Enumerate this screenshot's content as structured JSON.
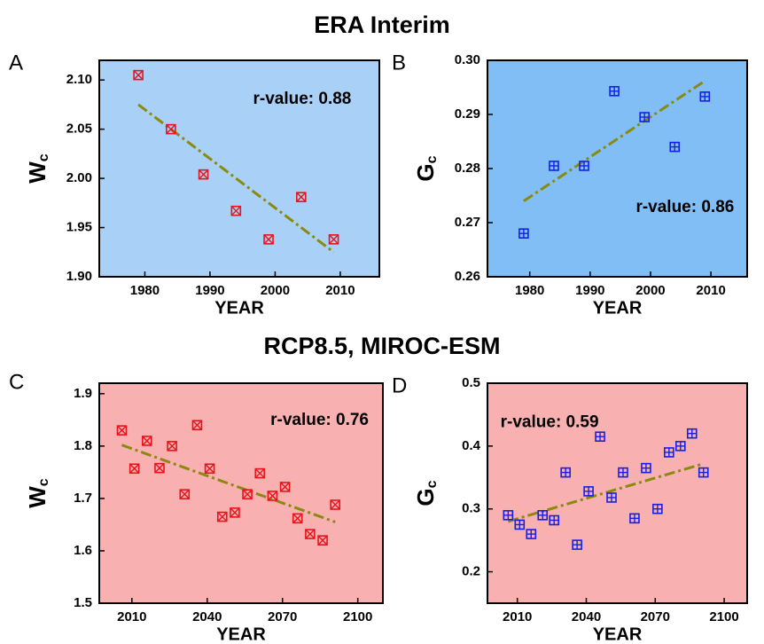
{
  "headings": [
    "ERA Interim",
    "RCP8.5, MIROC-ESM"
  ],
  "chart_data": [
    {
      "type": "scatter",
      "panel": "A",
      "xlabel": "YEAR",
      "ylabel": "W",
      "ylabel_subscript": "c",
      "annotation": "r-value: 0.88",
      "background": "#a9d0f7",
      "x": [
        1979,
        1984,
        1989,
        1994,
        1999,
        2004,
        2009
      ],
      "series": [
        {
          "color": "#e8141c",
          "marker": "cross",
          "values": [
            2.105,
            2.05,
            2.004,
            1.967,
            1.938,
            1.981,
            1.938
          ]
        }
      ],
      "trend": {
        "x": [
          1979,
          2009
        ],
        "values": [
          2.075,
          1.925
        ],
        "color": "#8a8a10"
      },
      "xlim": [
        1973,
        2016
      ],
      "xticks": [
        1980,
        1990,
        2000,
        2010
      ],
      "ylim": [
        1.9,
        2.12
      ],
      "yticks": [
        {
          "value": 1.9,
          "label": "1.90"
        },
        1.95,
        {
          "value": 2.0,
          "label": "2.00"
        },
        2.05,
        {
          "value": 2.1,
          "label": "2.10"
        }
      ]
    },
    {
      "type": "scatter",
      "panel": "B",
      "xlabel": "YEAR",
      "ylabel": "G",
      "ylabel_subscript": "c",
      "annotation": "r-value: 0.86",
      "background": "#80bef5",
      "x": [
        1979,
        1984,
        1989,
        1994,
        1999,
        2004,
        2009
      ],
      "series": [
        {
          "color": "#1420e8",
          "marker": "plus",
          "values": [
            0.268,
            0.2805,
            0.2805,
            0.2943,
            0.2895,
            0.284,
            0.2933
          ]
        }
      ],
      "trend": {
        "x": [
          1979,
          2009
        ],
        "values": [
          0.274,
          0.2962
        ],
        "color": "#8a8a10"
      },
      "xlim": [
        1973,
        2016
      ],
      "xticks": [
        1980,
        1990,
        2000,
        2010
      ],
      "ylim": [
        0.26,
        0.3
      ],
      "yticks": [
        0.26,
        0.27,
        0.28,
        0.29,
        {
          "value": 0.3,
          "label": "0.30"
        }
      ]
    },
    {
      "type": "scatter",
      "panel": "C",
      "xlabel": "YEAR",
      "ylabel": "W",
      "ylabel_subscript": "c",
      "annotation": "r-value: 0.76",
      "background": "#f8b0b0",
      "x": [
        2006,
        2011,
        2016,
        2021,
        2026,
        2031,
        2036,
        2041,
        2046,
        2051,
        2056,
        2061,
        2066,
        2071,
        2076,
        2081,
        2086,
        2091
      ],
      "series": [
        {
          "color": "#e8141c",
          "marker": "cross",
          "values": [
            1.83,
            1.757,
            1.81,
            1.758,
            1.8,
            1.708,
            1.84,
            1.757,
            1.665,
            1.673,
            1.708,
            1.748,
            1.705,
            1.722,
            1.662,
            1.632,
            1.62,
            1.688
          ]
        }
      ],
      "trend": {
        "x": [
          2006,
          2091
        ],
        "values": [
          1.802,
          1.655
        ],
        "color": "#8a8a10"
      },
      "xlim": [
        1997,
        2110
      ],
      "xticks": [
        2010,
        2040,
        2070,
        2100
      ],
      "ylim": [
        1.5,
        1.92
      ],
      "yticks": [
        1.5,
        1.6,
        1.7,
        1.8,
        1.9
      ]
    },
    {
      "type": "scatter",
      "panel": "D",
      "xlabel": "YEAR",
      "ylabel": "G",
      "ylabel_subscript": "c",
      "annotation": "r-value: 0.59",
      "background": "#f8b0b0",
      "x": [
        2006,
        2011,
        2016,
        2021,
        2026,
        2031,
        2036,
        2041,
        2046,
        2051,
        2056,
        2061,
        2066,
        2071,
        2076,
        2081,
        2086,
        2091
      ],
      "series": [
        {
          "color": "#1420e8",
          "marker": "plus",
          "values": [
            0.29,
            0.275,
            0.26,
            0.29,
            0.282,
            0.358,
            0.243,
            0.328,
            0.415,
            0.318,
            0.358,
            0.285,
            0.365,
            0.3,
            0.39,
            0.4,
            0.42,
            0.358
          ]
        }
      ],
      "trend": {
        "x": [
          2006,
          2091
        ],
        "values": [
          0.28,
          0.372
        ],
        "color": "#8a8a10"
      },
      "xlim": [
        1997,
        2110
      ],
      "xticks": [
        2010,
        2040,
        2070,
        2100
      ],
      "ylim": [
        0.15,
        0.5
      ],
      "yticks": [
        0.2,
        0.3,
        0.4,
        0.5
      ]
    }
  ]
}
